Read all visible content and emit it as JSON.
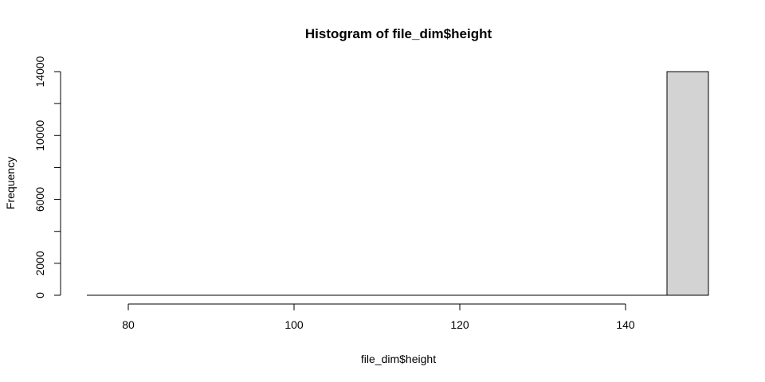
{
  "chart_data": {
    "type": "bar",
    "subtype": "histogram",
    "title": "Histogram of file_dim$height",
    "xlabel": "file_dim$height",
    "ylabel": "Frequency",
    "xlim": [
      75,
      150
    ],
    "ylim": [
      0,
      14000
    ],
    "x_ticks": [
      80,
      100,
      120,
      140
    ],
    "y_ticks": [
      0,
      2000,
      6000,
      10000,
      14000
    ],
    "y_minor_ticks": [
      4000,
      8000,
      12000
    ],
    "bins": [
      {
        "start": 75,
        "end": 80,
        "count": 0
      },
      {
        "start": 80,
        "end": 85,
        "count": 0
      },
      {
        "start": 85,
        "end": 90,
        "count": 0
      },
      {
        "start": 90,
        "end": 95,
        "count": 0
      },
      {
        "start": 95,
        "end": 100,
        "count": 0
      },
      {
        "start": 100,
        "end": 105,
        "count": 0
      },
      {
        "start": 105,
        "end": 110,
        "count": 0
      },
      {
        "start": 110,
        "end": 115,
        "count": 0
      },
      {
        "start": 115,
        "end": 120,
        "count": 0
      },
      {
        "start": 120,
        "end": 125,
        "count": 0
      },
      {
        "start": 125,
        "end": 130,
        "count": 0
      },
      {
        "start": 130,
        "end": 135,
        "count": 0
      },
      {
        "start": 135,
        "end": 140,
        "count": 0
      },
      {
        "start": 140,
        "end": 145,
        "count": 0
      },
      {
        "start": 145,
        "end": 150,
        "count": 14000
      }
    ],
    "bar_fill": "#d3d3d3",
    "bar_stroke": "#000000",
    "grid": false,
    "legend": "none"
  }
}
